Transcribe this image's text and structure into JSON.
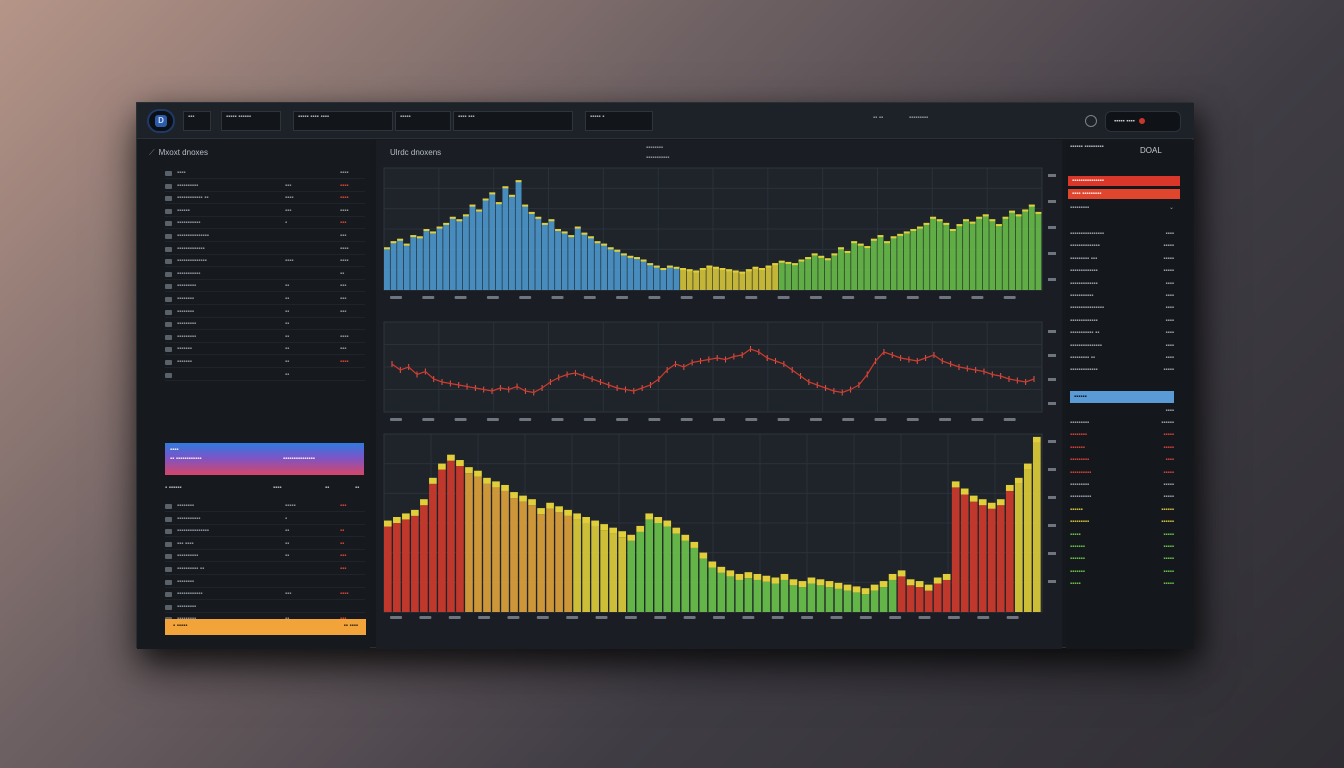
{
  "topbar": {
    "logo_letter": "D",
    "box1": "▪▪▪",
    "box2": "▪▪▪▪▪ ▪▪▪▪▪▪",
    "box3": "▪▪▪▪▪ ▪▪▪▪ ▪▪▪▪",
    "box4": "▪▪▪▪▪",
    "box5": "▪▪▪▪ ▪▪▪",
    "box6": "▪▪▪▪▪ ▪",
    "text1": "▪▪ ▪▪",
    "text2": "▪▪▪▪▪▪▪▪▪",
    "account": "▪▪▪▪▪ ▪▪▪▪"
  },
  "left_panel": {
    "title": "Mxoxt dnoxes",
    "rows_a": [
      {
        "c1": "▪▪▪▪",
        "c2": "",
        "c3": "▪▪▪▪",
        "red": false
      },
      {
        "c1": "▪▪▪▪▪▪▪▪▪▪",
        "c2": "▪▪▪",
        "c3": "▪▪▪▪",
        "red": true
      },
      {
        "c1": "▪▪▪▪▪▪▪▪▪▪▪▪ ▪▪",
        "c2": "▪▪▪▪",
        "c3": "▪▪▪▪",
        "red": true
      },
      {
        "c1": "▪▪▪▪▪▪",
        "c2": "▪▪▪",
        "c3": "▪▪▪▪",
        "red": false
      },
      {
        "c1": "▪▪▪▪▪▪▪▪▪▪▪",
        "c2": "▪",
        "c3": "▪▪▪",
        "red": true
      },
      {
        "c1": "▪▪▪▪▪▪▪▪▪▪▪▪▪▪▪",
        "c2": "",
        "c3": "▪▪▪",
        "red": false
      },
      {
        "c1": "▪▪▪▪▪▪▪▪▪▪▪▪▪",
        "c2": "",
        "c3": "▪▪▪▪",
        "red": false
      },
      {
        "c1": "▪▪▪▪▪▪▪▪▪▪▪▪▪▪",
        "c2": "▪▪▪▪",
        "c3": "▪▪▪▪",
        "red": false
      },
      {
        "c1": "▪▪▪▪▪▪▪▪▪▪▪",
        "c2": "",
        "c3": "▪▪",
        "red": false
      },
      {
        "c1": "▪▪▪▪▪▪▪▪▪",
        "c2": "▪▪",
        "c3": "▪▪▪",
        "red": false
      },
      {
        "c1": "▪▪▪▪▪▪▪▪",
        "c2": "▪▪",
        "c3": "▪▪▪",
        "red": false
      },
      {
        "c1": "▪▪▪▪▪▪▪▪",
        "c2": "▪▪",
        "c3": "▪▪▪",
        "red": false
      },
      {
        "c1": "▪▪▪▪▪▪▪▪▪",
        "c2": "▪▪",
        "c3": "",
        "red": false
      },
      {
        "c1": "▪▪▪▪▪▪▪▪▪",
        "c2": "▪▪",
        "c3": "▪▪▪▪",
        "red": false
      },
      {
        "c1": "▪▪▪▪▪▪▪",
        "c2": "▪▪",
        "c3": "▪▪▪",
        "red": false
      },
      {
        "c1": "▪▪▪▪▪▪▪",
        "c2": "▪▪",
        "c3": "▪▪▪▪",
        "red": true
      },
      {
        "c1": "",
        "c2": "▪▪",
        "c3": "",
        "red": false
      }
    ],
    "banner": {
      "line1": "▪▪▪▪",
      "line2": "▪▪ ▪▪▪▪▪▪▪▪▪▪▪▪",
      "line3": "▪▪▪▪▪▪▪▪▪▪▪▪▪▪▪"
    },
    "subhead": {
      "a": "▪ ▪▪▪▪▪▪",
      "b": "▪▪▪▪",
      "c": "▪▪",
      "d": "▪▪"
    },
    "rows_b": [
      {
        "c1": "▪▪▪▪▪▪▪▪",
        "c2": "▪▪▪▪▪",
        "c3": "▪▪▪",
        "red": true
      },
      {
        "c1": "▪▪▪▪▪▪▪▪▪▪▪",
        "c2": "▪",
        "c3": "",
        "red": false
      },
      {
        "c1": "▪▪▪▪▪▪▪▪▪▪▪▪▪▪▪",
        "c2": "▪▪",
        "c3": "▪▪",
        "red": true
      },
      {
        "c1": "▪▪▪ ▪▪▪▪",
        "c2": "▪▪",
        "c3": "▪▪",
        "red": true
      },
      {
        "c1": "▪▪▪▪▪▪▪▪▪▪",
        "c2": "▪▪",
        "c3": "▪▪▪",
        "red": true
      },
      {
        "c1": "▪▪▪▪▪▪▪▪▪▪ ▪▪",
        "c2": "",
        "c3": "▪▪▪",
        "red": true
      },
      {
        "c1": "▪▪▪▪▪▪▪▪",
        "c2": "",
        "c3": "",
        "red": false
      },
      {
        "c1": "▪▪▪▪▪▪▪▪▪▪▪▪",
        "c2": "▪▪▪",
        "c3": "▪▪▪▪",
        "red": true
      },
      {
        "c1": "▪▪▪▪▪▪▪▪▪",
        "c2": "",
        "c3": "",
        "red": false
      },
      {
        "c1": "▪▪▪▪▪▪▪▪▪",
        "c2": "▪▪",
        "c3": "▪▪▪",
        "red": true
      }
    ],
    "bottom_bar": {
      "left": "▪ ▪▪▪▪▪",
      "right": "▪▪ ▪▪▪▪"
    }
  },
  "chart_panel": {
    "title": "Ulrdc dnoxens",
    "note1": "▪▪▪▪▪▪▪▪",
    "note2": "▪▪▪▪▪▪▪▪▪▪▪"
  },
  "right_panel": {
    "head": "▪▪▪▪▪▪ ▪▪▪▪▪▪▪▪▪",
    "head2": "DOAL",
    "red1": "▪▪▪▪▪▪▪▪▪▪▪▪▪▪▪",
    "red2": "▪▪▪▪ ▪▪▪▪▪▪▪▪▪",
    "label": "▪▪▪▪▪▪▪▪▪",
    "rows_a": [
      {
        "a": "▪▪▪▪▪▪▪▪▪▪▪▪▪▪▪▪",
        "b": "▪▪▪▪"
      },
      {
        "a": "▪▪▪▪▪▪▪▪▪▪▪▪▪▪",
        "b": "▪▪▪▪▪"
      },
      {
        "a": "▪▪▪▪▪▪▪▪▪ ▪▪▪",
        "b": "▪▪▪▪▪"
      },
      {
        "a": "▪▪▪▪▪▪▪▪▪▪▪▪▪",
        "b": "▪▪▪▪▪"
      },
      {
        "a": "▪▪▪▪▪▪▪▪▪▪▪▪▪",
        "b": "▪▪▪▪"
      },
      {
        "a": "▪▪▪▪▪▪▪▪▪▪▪",
        "b": "▪▪▪▪"
      },
      {
        "a": "▪▪▪▪▪▪▪▪▪▪▪▪▪▪▪▪",
        "b": "▪▪▪▪"
      },
      {
        "a": "▪▪▪▪▪▪▪▪▪▪▪▪▪",
        "b": "▪▪▪▪"
      },
      {
        "a": "▪▪▪▪▪▪▪▪▪▪▪ ▪▪",
        "b": "▪▪▪▪"
      },
      {
        "a": "▪▪▪▪▪▪▪▪▪▪▪▪▪▪▪",
        "b": "▪▪▪▪"
      },
      {
        "a": "▪▪▪▪▪▪▪▪▪ ▪▪",
        "b": "▪▪▪▪"
      },
      {
        "a": "▪▪▪▪▪▪▪▪▪▪▪▪▪",
        "b": "▪▪▪▪▪"
      }
    ],
    "blue": "▪▪▪▪▪▪",
    "blue_sub": "▪▪▪▪",
    "rows_b": [
      {
        "a": "▪▪▪▪▪▪▪▪▪",
        "b": "▪▪▪▪▪▪",
        "cls": ""
      },
      {
        "a": "▪▪▪▪▪▪▪▪",
        "b": "▪▪▪▪▪",
        "cls": "red"
      },
      {
        "a": "▪▪▪▪▪▪▪",
        "b": "▪▪▪▪▪",
        "cls": "red"
      },
      {
        "a": "▪▪▪▪▪▪▪▪▪",
        "b": "▪▪▪▪",
        "cls": "red"
      },
      {
        "a": "▪▪▪▪▪▪▪▪▪▪",
        "b": "▪▪▪▪▪",
        "cls": "red"
      },
      {
        "a": "▪▪▪▪▪▪▪▪▪",
        "b": "▪▪▪▪▪",
        "cls": ""
      },
      {
        "a": "▪▪▪▪▪▪▪▪▪▪",
        "b": "▪▪▪▪▪",
        "cls": ""
      },
      {
        "a": "▪▪▪▪▪▪",
        "b": "▪▪▪▪▪▪",
        "cls": "yellow"
      },
      {
        "a": "▪▪▪▪▪▪▪▪▪",
        "b": "▪▪▪▪▪▪",
        "cls": "yellow"
      },
      {
        "a": "▪▪▪▪▪",
        "b": "▪▪▪▪▪",
        "cls": "green"
      },
      {
        "a": "▪▪▪▪▪▪▪",
        "b": "▪▪▪▪▪",
        "cls": "green"
      },
      {
        "a": "▪▪▪▪▪▪▪",
        "b": "▪▪▪▪▪",
        "cls": "green"
      },
      {
        "a": "▪▪▪▪▪▪▪",
        "b": "▪▪▪▪▪",
        "cls": "green"
      },
      {
        "a": "▪▪▪▪▪",
        "b": "▪▪▪▪▪",
        "cls": "green"
      }
    ]
  },
  "chart_data": [
    {
      "type": "bar",
      "title": "",
      "colors": [
        "#4f9fd6",
        "#e0cf3a",
        "#6cc54a"
      ],
      "values": [
        35,
        40,
        42,
        38,
        45,
        44,
        50,
        48,
        52,
        55,
        60,
        58,
        62,
        70,
        66,
        75,
        80,
        72,
        85,
        78,
        90,
        70,
        64,
        60,
        55,
        58,
        50,
        48,
        45,
        52,
        47,
        44,
        40,
        38,
        35,
        33,
        30,
        28,
        27,
        25,
        22,
        20,
        18,
        20,
        19,
        18,
        17,
        16,
        18,
        20,
        19,
        18,
        17,
        16,
        15,
        17,
        19,
        18,
        20,
        22,
        24,
        23,
        22,
        25,
        27,
        30,
        28,
        26,
        30,
        35,
        32,
        40,
        38,
        36,
        42,
        45,
        40,
        44,
        46,
        48,
        50,
        52,
        55,
        60,
        58,
        55,
        50,
        54,
        58,
        56,
        60,
        62,
        58,
        54,
        60,
        65,
        62,
        66,
        70,
        64
      ]
    },
    {
      "type": "line",
      "title": "",
      "color": "#d13a2c",
      "values": [
        62,
        58,
        60,
        55,
        57,
        52,
        50,
        49,
        48,
        47,
        46,
        45,
        44,
        46,
        45,
        47,
        44,
        43,
        46,
        50,
        53,
        55,
        56,
        54,
        52,
        50,
        48,
        46,
        45,
        44,
        46,
        48,
        52,
        58,
        62,
        60,
        63,
        64,
        65,
        66,
        65,
        67,
        68,
        72,
        70,
        66,
        64,
        62,
        58,
        54,
        50,
        48,
        46,
        44,
        43,
        45,
        48,
        55,
        64,
        70,
        68,
        66,
        65,
        64,
        66,
        68,
        64,
        62,
        60,
        59,
        58,
        57,
        55,
        54,
        52,
        51,
        50,
        52
      ]
    },
    {
      "type": "bar",
      "title": "",
      "colors": [
        "#d13a2c",
        "#e0a33a",
        "#e0cf3a",
        "#6cc54a"
      ],
      "values": [
        48,
        50,
        52,
        54,
        60,
        72,
        80,
        85,
        82,
        78,
        76,
        72,
        70,
        68,
        64,
        62,
        60,
        55,
        58,
        56,
        54,
        52,
        50,
        48,
        46,
        44,
        42,
        40,
        45,
        52,
        50,
        48,
        44,
        40,
        36,
        30,
        25,
        22,
        20,
        18,
        19,
        18,
        17,
        16,
        18,
        15,
        14,
        16,
        15,
        14,
        13,
        12,
        11,
        10,
        12,
        14,
        18,
        20,
        15,
        14,
        12,
        16,
        18,
        70,
        66,
        62,
        60,
        58,
        60,
        68,
        72,
        80,
        95
      ]
    }
  ]
}
